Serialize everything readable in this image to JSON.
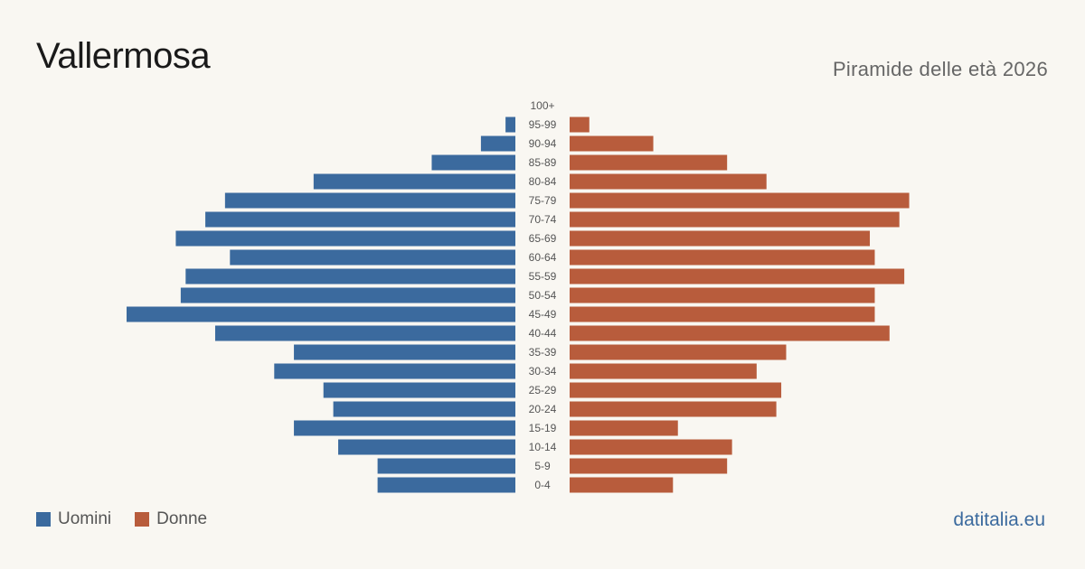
{
  "header": {
    "title": "Vallermosa",
    "subtitle": "Piramide delle età 2026"
  },
  "legend": {
    "men_label": "Uomini",
    "women_label": "Donne"
  },
  "footer": {
    "source": "datitalia.eu"
  },
  "colors": {
    "men": "#3b6a9e",
    "women": "#b85c3c",
    "background": "#f9f7f2",
    "tick_text": "#555555"
  },
  "chart_data": {
    "type": "bar",
    "orientation": "horizontal-population-pyramid",
    "categories": [
      "100+",
      "95-99",
      "90-94",
      "85-89",
      "80-84",
      "75-79",
      "70-74",
      "65-69",
      "60-64",
      "55-59",
      "50-54",
      "45-49",
      "40-44",
      "35-39",
      "30-34",
      "25-29",
      "20-24",
      "15-19",
      "10-14",
      "5-9",
      "0-4"
    ],
    "series": [
      {
        "name": "Uomini",
        "values": [
          0,
          2,
          7,
          17,
          41,
          59,
          63,
          69,
          58,
          67,
          68,
          79,
          61,
          45,
          49,
          39,
          37,
          45,
          36,
          28,
          28
        ]
      },
      {
        "name": "Donne",
        "values": [
          0,
          4,
          17,
          32,
          40,
          69,
          67,
          61,
          62,
          68,
          62,
          62,
          65,
          44,
          38,
          43,
          42,
          22,
          33,
          32,
          21
        ]
      }
    ],
    "xlim": [
      0,
      79
    ],
    "grid": false,
    "legend_position": "bottom-left"
  }
}
